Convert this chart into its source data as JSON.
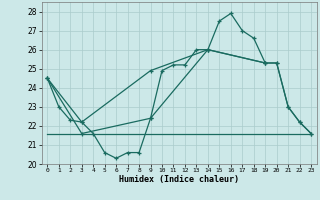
{
  "xlabel": "Humidex (Indice chaleur)",
  "background_color": "#cce8e8",
  "grid_color": "#aacccc",
  "line_color": "#1a6b60",
  "xlim": [
    -0.5,
    23.5
  ],
  "ylim": [
    20,
    28.5
  ],
  "yticks": [
    20,
    21,
    22,
    23,
    24,
    25,
    26,
    27,
    28
  ],
  "xticks": [
    0,
    1,
    2,
    3,
    4,
    5,
    6,
    7,
    8,
    9,
    10,
    11,
    12,
    13,
    14,
    15,
    16,
    17,
    18,
    19,
    20,
    21,
    22,
    23
  ],
  "series1_x": [
    0,
    1,
    2,
    3,
    4,
    5,
    6,
    7,
    8,
    9,
    10,
    11,
    12,
    13,
    14,
    15,
    16,
    17,
    18,
    19,
    20,
    21,
    22,
    23
  ],
  "series1_y": [
    24.5,
    23.0,
    22.3,
    22.2,
    21.6,
    20.6,
    20.3,
    20.6,
    20.6,
    22.4,
    24.9,
    25.2,
    25.2,
    26.0,
    26.0,
    27.5,
    27.9,
    27.0,
    26.6,
    25.3,
    25.3,
    23.0,
    22.2,
    21.6
  ],
  "series2_x": [
    0,
    3,
    9,
    14,
    19,
    20,
    21,
    22,
    23
  ],
  "series2_y": [
    24.5,
    21.6,
    22.4,
    26.0,
    25.3,
    25.3,
    23.0,
    22.2,
    21.6
  ],
  "series3_x": [
    0,
    23
  ],
  "series3_y": [
    21.6,
    21.6
  ],
  "series4_x": [
    0,
    3,
    9,
    14,
    19
  ],
  "series4_y": [
    24.5,
    22.2,
    24.9,
    26.0,
    25.3
  ]
}
